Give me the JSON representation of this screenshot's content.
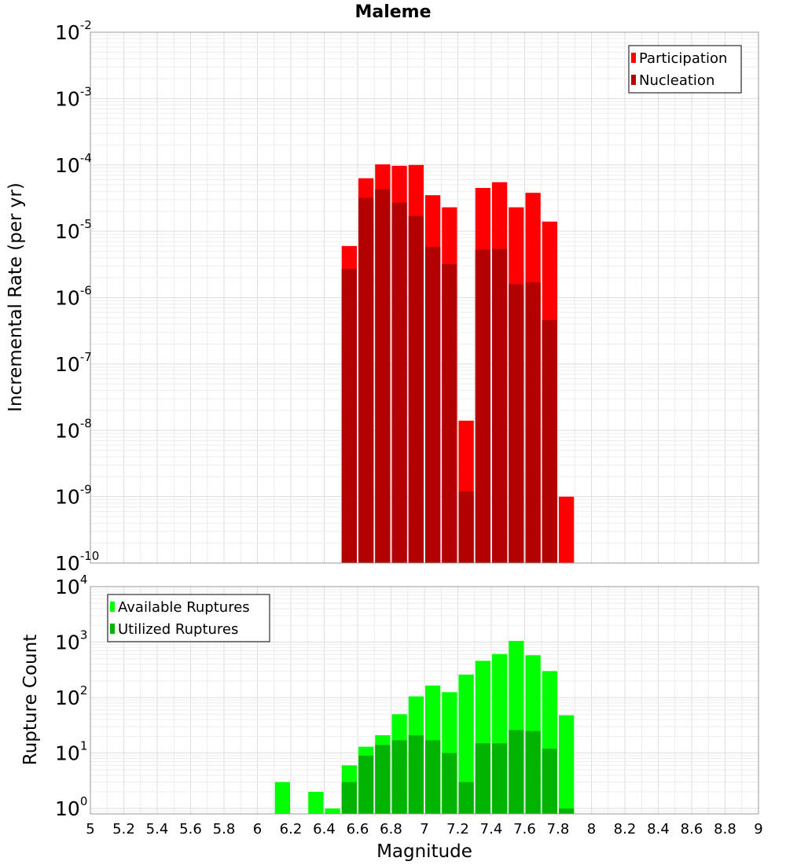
{
  "chart_data": [
    {
      "type": "bar",
      "title": "Maleme",
      "ylabel": "Incremental Rate (per yr)",
      "xlabel": "Magnitude",
      "yscale": "log",
      "ylim": [
        1e-10,
        0.01
      ],
      "xlim": [
        5,
        9
      ],
      "grid": true,
      "legend_position": "top-right",
      "bin_width": 0.1,
      "x": [
        6.55,
        6.65,
        6.75,
        6.85,
        6.95,
        7.05,
        7.15,
        7.25,
        7.35,
        7.45,
        7.55,
        7.65,
        7.75,
        7.85
      ],
      "series": [
        {
          "name": "Participation",
          "color": "#ff0000",
          "values": [
            6e-06,
            6.3e-05,
            0.000102,
            9.7e-05,
            0.0001,
            3.5e-05,
            2.3e-05,
            1.4e-08,
            4.5e-05,
            5.5e-05,
            2.3e-05,
            3.8e-05,
            1.4e-05,
            1e-09
          ]
        },
        {
          "name": "Nucleation",
          "color": "#b30000",
          "values": [
            2.7e-06,
            3.2e-05,
            4.3e-05,
            2.7e-05,
            1.7e-05,
            5.8e-06,
            3.2e-06,
            1.2e-09,
            5.3e-06,
            5.4e-06,
            1.6e-06,
            1.7e-06,
            4.6e-07,
            null
          ]
        }
      ]
    },
    {
      "type": "bar",
      "ylabel": "Rupture Count",
      "xlabel": "Magnitude",
      "yscale": "log",
      "ylim": [
        0.8,
        10000
      ],
      "xlim": [
        5,
        9
      ],
      "grid": true,
      "legend_position": "top-left",
      "bin_width": 0.1,
      "x": [
        6.15,
        6.35,
        6.45,
        6.55,
        6.65,
        6.75,
        6.85,
        6.95,
        7.05,
        7.15,
        7.25,
        7.35,
        7.45,
        7.55,
        7.65,
        7.75,
        7.85
      ],
      "series": [
        {
          "name": "Available Ruptures",
          "color": "#00ff00",
          "values": [
            3,
            2,
            1,
            6,
            13,
            21,
            50,
            105,
            165,
            125,
            260,
            460,
            610,
            1050,
            580,
            300,
            48
          ]
        },
        {
          "name": "Utilized Ruptures",
          "color": "#00b300",
          "values": [
            null,
            null,
            null,
            3,
            9,
            14,
            17,
            21,
            17,
            10,
            3,
            15,
            15,
            26,
            25,
            12,
            1
          ]
        }
      ],
      "xticks": [
        "5",
        "5.2",
        "5.4",
        "5.6",
        "5.8",
        "6",
        "6.2",
        "6.4",
        "6.6",
        "6.8",
        "7",
        "7.2",
        "7.4",
        "7.6",
        "7.8",
        "8",
        "8.2",
        "8.4",
        "8.6",
        "8.8",
        "9"
      ]
    }
  ],
  "panels": {
    "top": {
      "yticks": [
        {
          "base": "10",
          "exp": "-2",
          "value": 0.01
        },
        {
          "base": "10",
          "exp": "-3",
          "value": 0.001
        },
        {
          "base": "10",
          "exp": "-4",
          "value": 0.0001
        },
        {
          "base": "10",
          "exp": "-5",
          "value": 1e-05
        },
        {
          "base": "10",
          "exp": "-6",
          "value": 1e-06
        },
        {
          "base": "10",
          "exp": "-7",
          "value": 1e-07
        },
        {
          "base": "10",
          "exp": "-8",
          "value": 1e-08
        },
        {
          "base": "10",
          "exp": "-9",
          "value": 1e-09
        },
        {
          "base": "10",
          "exp": "-10",
          "value": 1e-10
        }
      ]
    },
    "bottom": {
      "yticks": [
        {
          "base": "10",
          "exp": "4",
          "value": 10000
        },
        {
          "base": "10",
          "exp": "3",
          "value": 1000
        },
        {
          "base": "10",
          "exp": "2",
          "value": 100
        },
        {
          "base": "10",
          "exp": "1",
          "value": 10
        },
        {
          "base": "10",
          "exp": "0",
          "value": 1
        }
      ]
    }
  }
}
